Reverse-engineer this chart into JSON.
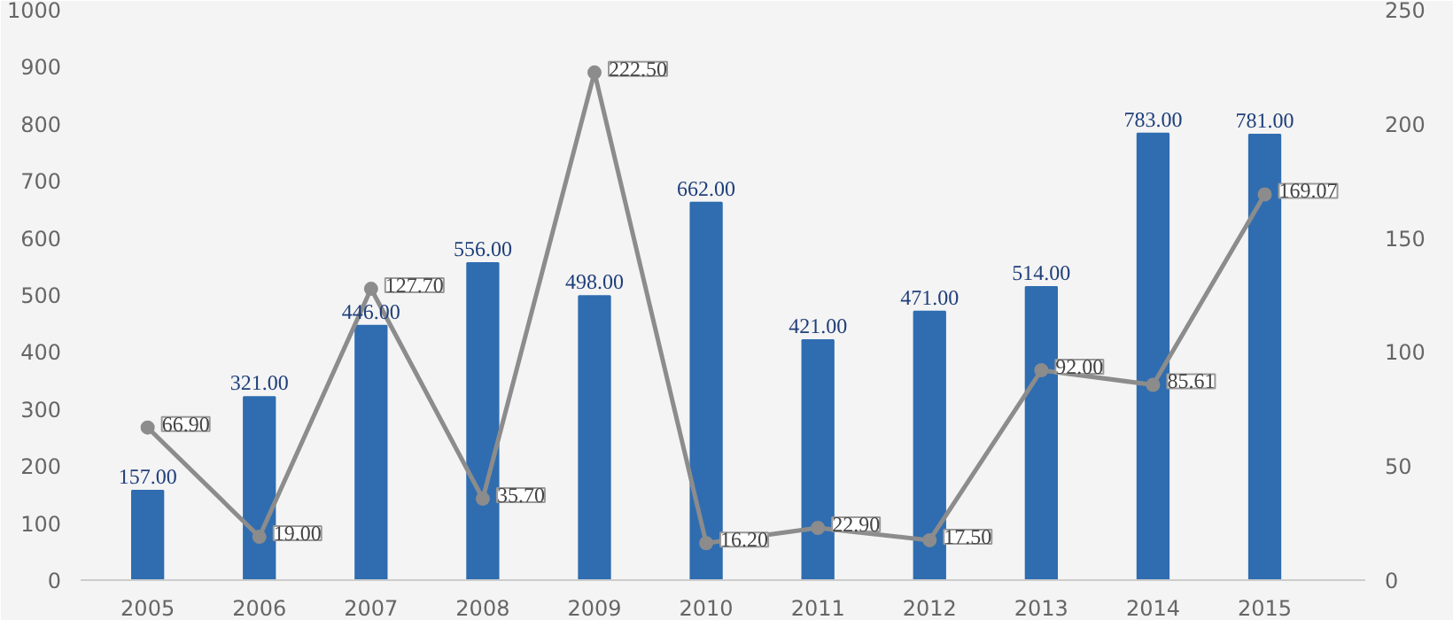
{
  "chart_data": {
    "type": "bar",
    "categories": [
      "2005",
      "2006",
      "2007",
      "2008",
      "2009",
      "2010",
      "2011",
      "2012",
      "2013",
      "2014",
      "2015"
    ],
    "series": [
      {
        "color": "#2f6db0",
        "values": [
          157,
          321,
          446,
          556,
          498,
          662,
          421,
          471,
          514,
          783,
          781
        ],
        "value_labels": [
          "157.00",
          "321.00",
          "446.00",
          "556.00",
          "498.00",
          "662.00",
          "421.00",
          "471.00",
          "514.00",
          "783.00",
          "781.00"
        ]
      },
      {
        "type": "line",
        "axis": "y2",
        "color": "#8c8c8c",
        "values": [
          66.9,
          19,
          127.7,
          35.7,
          222.5,
          16.2,
          22.9,
          17.5,
          92,
          85.61,
          169.07
        ],
        "value_labels": [
          "66.90",
          "19.00",
          "127.70",
          "35.70",
          "222.50",
          "16.20",
          "22.90",
          "17.50",
          "92.00",
          "85.61",
          "169.07"
        ]
      }
    ],
    "ylim": [
      0,
      1000
    ],
    "yticks": [
      0,
      100,
      200,
      300,
      400,
      500,
      600,
      700,
      800,
      900,
      1000
    ],
    "y2lim": [
      0,
      250
    ],
    "y2ticks": [
      0,
      50,
      100,
      150,
      200,
      250
    ],
    "marker": "circle",
    "grid": false
  }
}
